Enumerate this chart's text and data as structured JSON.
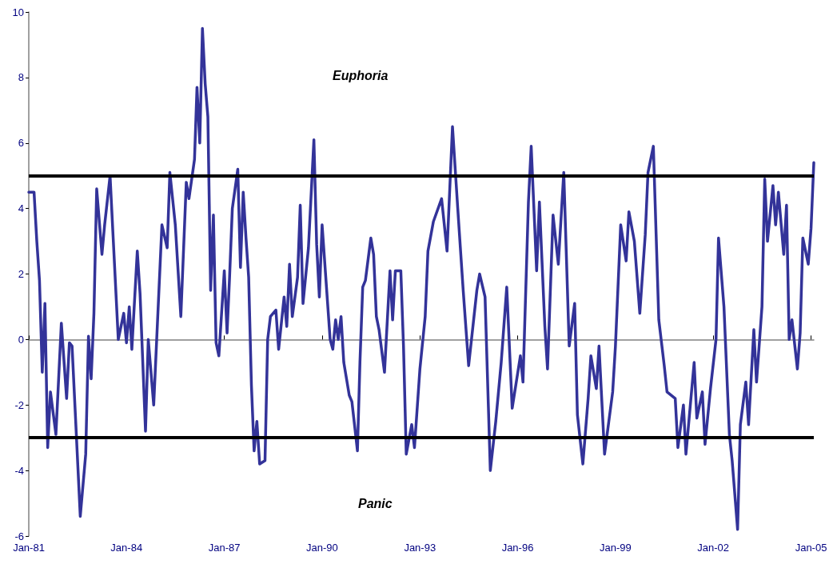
{
  "chart_data": {
    "type": "line",
    "annotations": [
      "Euphoria",
      "Panic"
    ],
    "x": [
      "1981-01",
      "1981-03",
      "1981-04",
      "1981-05",
      "1981-06",
      "1981-07",
      "1981-08",
      "1981-09",
      "1981-11",
      "1982-01",
      "1982-03",
      "1982-04",
      "1982-05",
      "1982-08",
      "1982-10",
      "1982-11",
      "1982-12",
      "1983-01",
      "1983-02",
      "1983-04",
      "1983-05",
      "1983-07",
      "1983-08",
      "1983-10",
      "1983-12",
      "1984-01",
      "1984-02",
      "1984-03",
      "1984-05",
      "1984-06",
      "1984-08",
      "1984-09",
      "1984-11",
      "1984-12",
      "1985-02",
      "1985-04",
      "1985-05",
      "1985-07",
      "1985-09",
      "1985-11",
      "1985-12",
      "1986-02",
      "1986-03",
      "1986-04",
      "1986-05",
      "1986-06",
      "1986-07",
      "1986-08",
      "1986-09",
      "1986-10",
      "1986-11",
      "1987-01",
      "1987-02",
      "1987-03",
      "1987-04",
      "1987-06",
      "1987-07",
      "1987-08",
      "1987-09",
      "1987-10",
      "1987-11",
      "1987-12",
      "1988-01",
      "1988-02",
      "1988-04",
      "1988-05",
      "1988-06",
      "1988-08",
      "1988-09",
      "1988-11",
      "1988-12",
      "1989-01",
      "1989-02",
      "1989-04",
      "1989-05",
      "1989-06",
      "1989-08",
      "1989-10",
      "1989-11",
      "1989-12",
      "1990-01",
      "1990-04",
      "1990-05",
      "1990-06",
      "1990-07",
      "1990-08",
      "1990-09",
      "1990-11",
      "1990-12",
      "1991-02",
      "1991-03",
      "1991-04",
      "1991-05",
      "1991-07",
      "1991-08",
      "1991-09",
      "1991-10",
      "1991-12",
      "1992-02",
      "1992-03",
      "1992-04",
      "1992-06",
      "1992-07",
      "1992-08",
      "1992-10",
      "1992-11",
      "1993-01",
      "1993-03",
      "1993-04",
      "1993-06",
      "1993-09",
      "1993-11",
      "1994-01",
      "1994-03",
      "1994-05",
      "1994-07",
      "1994-10",
      "1994-11",
      "1995-01",
      "1995-03",
      "1995-05",
      "1995-07",
      "1995-09",
      "1995-11",
      "1996-02",
      "1996-03",
      "1996-05",
      "1996-06",
      "1996-08",
      "1996-09",
      "1996-11",
      "1996-12",
      "1997-02",
      "1997-04",
      "1997-06",
      "1997-08",
      "1997-10",
      "1997-11",
      "1998-01",
      "1998-03",
      "1998-04",
      "1998-06",
      "1998-07",
      "1998-09",
      "1998-12",
      "1999-01",
      "1999-03",
      "1999-05",
      "1999-06",
      "1999-08",
      "1999-10",
      "1999-12",
      "2000-01",
      "2000-03",
      "2000-04",
      "2000-05",
      "2000-07",
      "2000-08",
      "2000-11",
      "2000-12",
      "2001-02",
      "2001-03",
      "2001-06",
      "2001-07",
      "2001-09",
      "2001-10",
      "2001-12",
      "2002-02",
      "2002-03",
      "2002-05",
      "2002-07",
      "2002-08",
      "2002-10",
      "2002-11",
      "2003-01",
      "2003-02",
      "2003-04",
      "2003-05",
      "2003-07",
      "2003-08",
      "2003-09",
      "2003-11",
      "2003-12",
      "2004-01",
      "2004-03",
      "2004-04",
      "2004-05",
      "2004-06",
      "2004-08",
      "2004-09",
      "2004-10",
      "2004-12",
      "2005-01",
      "2005-02"
    ],
    "series": [
      {
        "color": "#333399",
        "values": [
          4.5,
          4.5,
          3.0,
          1.8,
          -1.0,
          1.1,
          -3.3,
          -1.6,
          -2.9,
          0.5,
          -1.8,
          -0.1,
          -0.2,
          -5.4,
          -3.5,
          0.1,
          -1.2,
          0.8,
          4.6,
          2.6,
          3.5,
          5.0,
          3.3,
          0,
          0.8,
          -0.1,
          1.0,
          -0.3,
          2.7,
          1.4,
          -2.8,
          0,
          -2.0,
          -0.2,
          3.5,
          2.8,
          5.1,
          3.5,
          0.7,
          4.8,
          4.3,
          5.5,
          7.7,
          6.0,
          9.5,
          7.8,
          6.8,
          1.5,
          3.8,
          -0.1,
          -0.5,
          2.1,
          0.2,
          1.9,
          4.0,
          5.2,
          2.2,
          4.5,
          3.1,
          1.9,
          -1.4,
          -3.4,
          -2.5,
          -3.8,
          -3.7,
          0,
          0.7,
          0.9,
          -0.3,
          1.3,
          0.4,
          2.3,
          0.7,
          1.9,
          4.1,
          1.1,
          2.8,
          6.1,
          2.9,
          1.3,
          3.5,
          0,
          -0.3,
          0.6,
          0,
          0.7,
          -0.7,
          -1.7,
          -1.9,
          -3.4,
          -0.7,
          1.6,
          1.8,
          3.1,
          2.6,
          0.7,
          0.3,
          -1.0,
          2.1,
          0.6,
          2.1,
          2.1,
          -0.2,
          -3.5,
          -2.6,
          -3.3,
          -0.9,
          0.7,
          2.7,
          3.6,
          4.3,
          2.7,
          6.5,
          4.0,
          1.5,
          -0.8,
          1.5,
          2.0,
          1.3,
          -4.0,
          -2.5,
          -0.7,
          1.6,
          -2.1,
          -0.5,
          -1.3,
          4.2,
          5.9,
          2.1,
          4.2,
          0.4,
          -0.9,
          3.8,
          2.3,
          5.1,
          -0.2,
          1.1,
          -2.3,
          -3.8,
          -1.8,
          -0.5,
          -1.5,
          -0.2,
          -3.5,
          -1.6,
          -0.2,
          3.5,
          2.4,
          3.9,
          3.0,
          0.8,
          3.2,
          5.1,
          5.9,
          3.2,
          0.6,
          -0.8,
          -1.6,
          -1.8,
          -3.3,
          -2.0,
          -3.5,
          -0.7,
          -2.4,
          -1.6,
          -3.2,
          -1.5,
          0,
          3.1,
          1.0,
          -2.9,
          -3.7,
          -5.8,
          -2.6,
          -1.3,
          -2.6,
          0.3,
          -1.3,
          1.0,
          4.9,
          3.0,
          4.7,
          3.5,
          4.5,
          2.6,
          4.1,
          0,
          0.6,
          -0.9,
          0.2,
          3.1,
          2.3,
          3.4,
          5.4
        ]
      }
    ],
    "xlim": [
      "1981-01",
      "2005-02"
    ],
    "xticks": [
      {
        "value": "1981-01",
        "label": "Jan-81"
      },
      {
        "value": "1984-01",
        "label": "Jan-84"
      },
      {
        "value": "1987-01",
        "label": "Jan-87"
      },
      {
        "value": "1990-01",
        "label": "Jan-90"
      },
      {
        "value": "1993-01",
        "label": "Jan-93"
      },
      {
        "value": "1996-01",
        "label": "Jan-96"
      },
      {
        "value": "1999-01",
        "label": "Jan-99"
      },
      {
        "value": "2002-01",
        "label": "Jan-02"
      },
      {
        "value": "2005-01",
        "label": "Jan-05"
      }
    ],
    "ylim": [
      -6,
      10
    ],
    "yticks": [
      -6,
      -4,
      -2,
      0,
      2,
      4,
      6,
      8,
      10
    ],
    "ref_lines": [
      {
        "axis": "y",
        "value": 5,
        "color": "#000000"
      },
      {
        "axis": "y",
        "value": -3,
        "color": "#000000"
      }
    ],
    "marker": "none",
    "line_style": "solid"
  }
}
